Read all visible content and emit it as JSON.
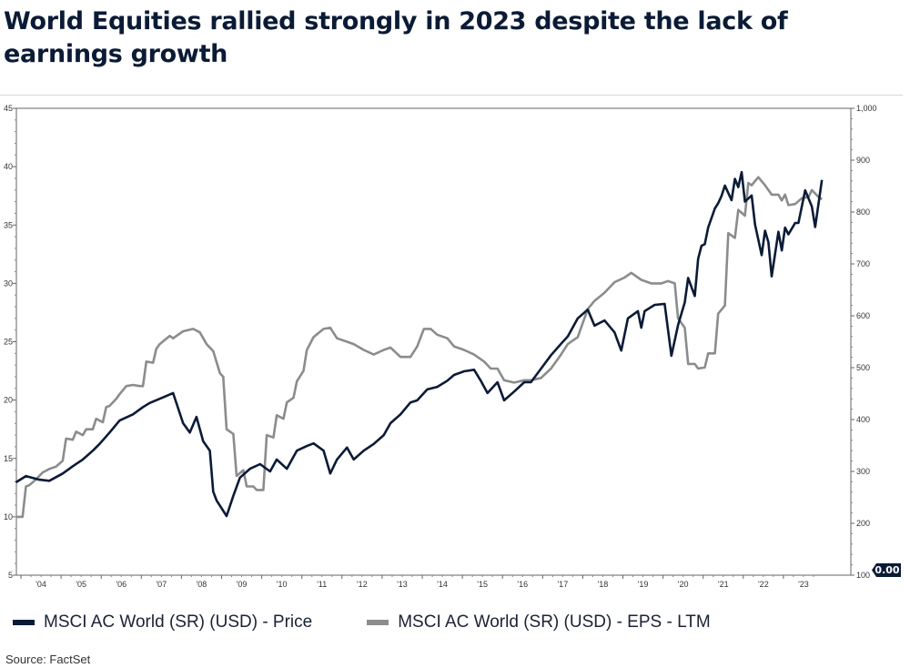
{
  "title": "World Equities rallied strongly in 2023 despite the lack of earnings growth",
  "source": "Source: FactSet",
  "badge": "0.00",
  "chart_data": {
    "type": "line",
    "title": "World Equities rallied strongly in 2023 despite the lack of earnings growth",
    "x_tick_labels": [
      "'04",
      "'05",
      "'06",
      "'07",
      "'08",
      "'09",
      "'10",
      "'11",
      "'12",
      "'13",
      "'14",
      "'15",
      "'16",
      "'17",
      "'18",
      "'19",
      "'20",
      "'21",
      "'22",
      "'23"
    ],
    "left_axis": {
      "range": [
        5,
        45
      ],
      "ticks": [
        "5",
        "10",
        "15",
        "20",
        "25",
        "30",
        "35",
        "40",
        "45"
      ]
    },
    "right_axis": {
      "range": [
        100,
        1000
      ],
      "ticks": [
        "100",
        "200",
        "300",
        "400",
        "500",
        "600",
        "700",
        "800",
        "900",
        "1,000"
      ]
    },
    "grid": false,
    "legend_placement": "bottom",
    "series": [
      {
        "name": "MSCI AC World (SR) (USD) - Price",
        "axis": "right",
        "color": "#0b1b36",
        "points": [
          [
            "2003-11",
            279
          ],
          [
            "2004-02",
            291
          ],
          [
            "2004-06",
            284
          ],
          [
            "2004-09",
            282
          ],
          [
            "2005-01",
            296
          ],
          [
            "2005-04",
            310
          ],
          [
            "2005-07",
            323
          ],
          [
            "2005-10",
            340
          ],
          [
            "2005-12",
            353
          ],
          [
            "2006-03",
            375
          ],
          [
            "2006-06",
            398
          ],
          [
            "2006-10",
            410
          ],
          [
            "2007-01",
            424
          ],
          [
            "2007-03",
            432
          ],
          [
            "2007-06",
            440
          ],
          [
            "2007-10",
            451
          ],
          [
            "2008-01",
            393
          ],
          [
            "2008-03",
            375
          ],
          [
            "2008-05",
            405
          ],
          [
            "2008-07",
            358
          ],
          [
            "2008-09",
            340
          ],
          [
            "2008-10",
            261
          ],
          [
            "2008-11",
            244
          ],
          [
            "2009-02",
            214
          ],
          [
            "2009-04",
            253
          ],
          [
            "2009-06",
            288
          ],
          [
            "2009-09",
            305
          ],
          [
            "2009-12",
            314
          ],
          [
            "2010-03",
            300
          ],
          [
            "2010-05",
            323
          ],
          [
            "2010-08",
            305
          ],
          [
            "2010-11",
            340
          ],
          [
            "2011-02",
            349
          ],
          [
            "2011-04",
            354
          ],
          [
            "2011-07",
            340
          ],
          [
            "2011-09",
            296
          ],
          [
            "2011-11",
            323
          ],
          [
            "2012-02",
            346
          ],
          [
            "2012-04",
            323
          ],
          [
            "2012-07",
            340
          ],
          [
            "2012-10",
            353
          ],
          [
            "2013-01",
            370
          ],
          [
            "2013-03",
            393
          ],
          [
            "2013-06",
            410
          ],
          [
            "2013-09",
            433
          ],
          [
            "2013-11",
            437
          ],
          [
            "2014-02",
            458
          ],
          [
            "2014-05",
            463
          ],
          [
            "2014-08",
            475
          ],
          [
            "2014-10",
            486
          ],
          [
            "2015-01",
            493
          ],
          [
            "2015-04",
            496
          ],
          [
            "2015-06",
            475
          ],
          [
            "2015-08",
            451
          ],
          [
            "2015-11",
            472
          ],
          [
            "2016-01",
            437
          ],
          [
            "2016-04",
            454
          ],
          [
            "2016-07",
            472
          ],
          [
            "2016-09",
            472
          ],
          [
            "2016-12",
            498
          ],
          [
            "2017-03",
            524
          ],
          [
            "2017-06",
            546
          ],
          [
            "2017-08",
            560
          ],
          [
            "2017-11",
            595
          ],
          [
            "2018-02",
            612
          ],
          [
            "2018-04",
            581
          ],
          [
            "2018-07",
            591
          ],
          [
            "2018-10",
            568
          ],
          [
            "2018-12",
            533
          ],
          [
            "2019-02",
            595
          ],
          [
            "2019-05",
            609
          ],
          [
            "2019-06",
            577
          ],
          [
            "2019-07",
            609
          ],
          [
            "2019-10",
            621
          ],
          [
            "2020-01",
            623
          ],
          [
            "2020-03",
            523
          ],
          [
            "2020-05",
            582
          ],
          [
            "2020-07",
            626
          ],
          [
            "2020-08",
            673
          ],
          [
            "2020-10",
            638
          ],
          [
            "2020-11",
            710
          ],
          [
            "2020-12",
            735
          ],
          [
            "2021-01",
            738
          ],
          [
            "2021-02",
            770
          ],
          [
            "2021-04",
            807
          ],
          [
            "2021-05",
            817
          ],
          [
            "2021-06",
            831
          ],
          [
            "2021-07",
            851
          ],
          [
            "2021-09",
            823
          ],
          [
            "2021-10",
            864
          ],
          [
            "2021-11",
            848
          ],
          [
            "2021-12",
            877
          ],
          [
            "2022-01",
            820
          ],
          [
            "2022-03",
            832
          ],
          [
            "2022-04",
            776
          ],
          [
            "2022-06",
            717
          ],
          [
            "2022-07",
            764
          ],
          [
            "2022-08",
            742
          ],
          [
            "2022-09",
            676
          ],
          [
            "2022-11",
            762
          ],
          [
            "2022-12",
            726
          ],
          [
            "2023-01",
            770
          ],
          [
            "2023-02",
            757
          ],
          [
            "2023-04",
            779
          ],
          [
            "2023-05",
            779
          ],
          [
            "2023-07",
            842
          ],
          [
            "2023-09",
            811
          ],
          [
            "2023-10",
            771
          ],
          [
            "2023-12",
            862
          ]
        ]
      },
      {
        "name": "MSCI AC World (SR) (USD) - EPS - LTM",
        "axis": "left",
        "color": "#8a8c8e",
        "points": [
          [
            "2003-11",
            10.0
          ],
          [
            "2004-01",
            10.0
          ],
          [
            "2004-02",
            12.6
          ],
          [
            "2004-03",
            12.7
          ],
          [
            "2004-05",
            13.2
          ],
          [
            "2004-07",
            13.8
          ],
          [
            "2004-09",
            14.1
          ],
          [
            "2004-11",
            14.3
          ],
          [
            "2005-01",
            14.8
          ],
          [
            "2005-02",
            16.7
          ],
          [
            "2005-04",
            16.6
          ],
          [
            "2005-05",
            17.3
          ],
          [
            "2005-07",
            17.0
          ],
          [
            "2005-08",
            17.5
          ],
          [
            "2005-10",
            17.5
          ],
          [
            "2005-11",
            18.4
          ],
          [
            "2006-01",
            18.1
          ],
          [
            "2006-02",
            19.4
          ],
          [
            "2006-03",
            19.5
          ],
          [
            "2006-05",
            20.1
          ],
          [
            "2006-06",
            20.5
          ],
          [
            "2006-08",
            21.2
          ],
          [
            "2006-10",
            21.3
          ],
          [
            "2006-12",
            21.2
          ],
          [
            "2007-01",
            21.2
          ],
          [
            "2007-02",
            23.3
          ],
          [
            "2007-04",
            23.2
          ],
          [
            "2007-05",
            24.4
          ],
          [
            "2007-06",
            24.8
          ],
          [
            "2007-09",
            25.5
          ],
          [
            "2007-10",
            25.3
          ],
          [
            "2008-01",
            25.9
          ],
          [
            "2008-04",
            26.1
          ],
          [
            "2008-06",
            25.8
          ],
          [
            "2008-08",
            24.8
          ],
          [
            "2008-10",
            24.2
          ],
          [
            "2008-12",
            22.3
          ],
          [
            "2009-01",
            22.0
          ],
          [
            "2009-02",
            17.5
          ],
          [
            "2009-04",
            17.1
          ],
          [
            "2009-05",
            13.5
          ],
          [
            "2009-07",
            14.0
          ],
          [
            "2009-08",
            12.6
          ],
          [
            "2009-10",
            12.6
          ],
          [
            "2009-11",
            12.3
          ],
          [
            "2010-01",
            12.3
          ],
          [
            "2010-02",
            17.0
          ],
          [
            "2010-04",
            16.8
          ],
          [
            "2010-05",
            18.7
          ],
          [
            "2010-07",
            18.4
          ],
          [
            "2010-08",
            19.8
          ],
          [
            "2010-10",
            20.2
          ],
          [
            "2010-11",
            21.6
          ],
          [
            "2011-01",
            22.5
          ],
          [
            "2011-02",
            24.3
          ],
          [
            "2011-04",
            25.4
          ],
          [
            "2011-07",
            26.1
          ],
          [
            "2011-09",
            26.2
          ],
          [
            "2011-11",
            25.3
          ],
          [
            "2012-02",
            25.0
          ],
          [
            "2012-04",
            24.8
          ],
          [
            "2012-07",
            24.3
          ],
          [
            "2012-10",
            23.9
          ],
          [
            "2013-01",
            24.3
          ],
          [
            "2013-03",
            24.5
          ],
          [
            "2013-06",
            23.7
          ],
          [
            "2013-09",
            23.7
          ],
          [
            "2013-11",
            24.6
          ],
          [
            "2014-01",
            26.1
          ],
          [
            "2014-03",
            26.1
          ],
          [
            "2014-05",
            25.6
          ],
          [
            "2014-08",
            25.3
          ],
          [
            "2014-10",
            24.6
          ],
          [
            "2015-01",
            24.3
          ],
          [
            "2015-04",
            23.9
          ],
          [
            "2015-07",
            23.3
          ],
          [
            "2015-09",
            22.7
          ],
          [
            "2015-11",
            22.7
          ],
          [
            "2016-01",
            21.7
          ],
          [
            "2016-04",
            21.5
          ],
          [
            "2016-07",
            21.7
          ],
          [
            "2016-09",
            21.7
          ],
          [
            "2016-12",
            21.9
          ],
          [
            "2017-03",
            22.7
          ],
          [
            "2017-06",
            23.9
          ],
          [
            "2017-08",
            24.8
          ],
          [
            "2017-11",
            25.4
          ],
          [
            "2018-02",
            27.8
          ],
          [
            "2018-04",
            28.5
          ],
          [
            "2018-07",
            29.2
          ],
          [
            "2018-10",
            30.1
          ],
          [
            "2019-01",
            30.5
          ],
          [
            "2019-03",
            30.9
          ],
          [
            "2019-06",
            30.3
          ],
          [
            "2019-09",
            30.0
          ],
          [
            "2019-12",
            30.0
          ],
          [
            "2020-02",
            30.2
          ],
          [
            "2020-04",
            30.0
          ],
          [
            "2020-05",
            27.0
          ],
          [
            "2020-07",
            26.2
          ],
          [
            "2020-08",
            23.1
          ],
          [
            "2020-10",
            23.1
          ],
          [
            "2020-11",
            22.7
          ],
          [
            "2021-01",
            22.8
          ],
          [
            "2021-02",
            24.0
          ],
          [
            "2021-04",
            24.0
          ],
          [
            "2021-05",
            27.4
          ],
          [
            "2021-07",
            28.1
          ],
          [
            "2021-08",
            34.3
          ],
          [
            "2021-10",
            33.9
          ],
          [
            "2021-11",
            36.3
          ],
          [
            "2022-01",
            35.8
          ],
          [
            "2022-02",
            38.6
          ],
          [
            "2022-03",
            38.4
          ],
          [
            "2022-05",
            39.1
          ],
          [
            "2022-07",
            38.4
          ],
          [
            "2022-09",
            37.6
          ],
          [
            "2022-11",
            37.6
          ],
          [
            "2022-12",
            37.1
          ],
          [
            "2023-01",
            37.6
          ],
          [
            "2023-02",
            36.7
          ],
          [
            "2023-04",
            36.8
          ],
          [
            "2023-06",
            37.3
          ],
          [
            "2023-08",
            37.4
          ],
          [
            "2023-09",
            38.0
          ],
          [
            "2023-11",
            37.4
          ],
          [
            "2023-12",
            37.2
          ]
        ]
      }
    ]
  }
}
